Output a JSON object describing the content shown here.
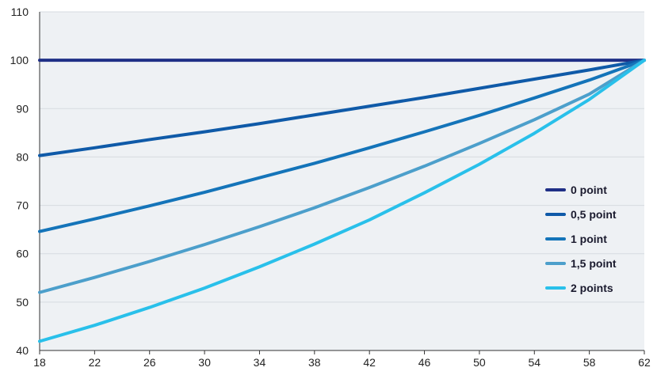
{
  "chart_data": {
    "type": "line",
    "title": "",
    "xlabel": "",
    "ylabel": "",
    "xlim": [
      18,
      62
    ],
    "ylim": [
      40,
      110
    ],
    "xticks": [
      18,
      22,
      26,
      30,
      34,
      38,
      42,
      46,
      50,
      54,
      58,
      62
    ],
    "yticks": [
      40,
      50,
      60,
      70,
      80,
      90,
      100,
      110
    ],
    "grid": "horizontal",
    "legend_position": "right",
    "x": [
      18,
      22,
      26,
      30,
      34,
      38,
      42,
      46,
      50,
      54,
      58,
      62
    ],
    "series": [
      {
        "name": "0 point",
        "color": "#1f2f86",
        "values": [
          100,
          100,
          100,
          100,
          100,
          100,
          100,
          100,
          100,
          100,
          100,
          100
        ]
      },
      {
        "name": "0,5 point",
        "color": "#0f5aa8",
        "values": [
          80.3,
          81.9,
          83.6,
          85.2,
          86.9,
          88.7,
          90.5,
          92.3,
          94.2,
          96.1,
          98.0,
          100
        ]
      },
      {
        "name": "1 point",
        "color": "#1474b9",
        "values": [
          64.6,
          67.2,
          69.9,
          72.7,
          75.7,
          78.7,
          81.9,
          85.2,
          88.6,
          92.2,
          95.9,
          100
        ]
      },
      {
        "name": "1,5 point",
        "color": "#4c9fcb",
        "values": [
          52.0,
          55.1,
          58.4,
          61.9,
          65.6,
          69.5,
          73.7,
          78.1,
          82.8,
          87.7,
          93.0,
          100
        ]
      },
      {
        "name": "2 points",
        "color": "#29c0ea",
        "values": [
          41.9,
          45.2,
          48.9,
          52.9,
          57.3,
          62.0,
          67.0,
          72.6,
          78.5,
          84.9,
          91.9,
          100
        ]
      }
    ]
  }
}
